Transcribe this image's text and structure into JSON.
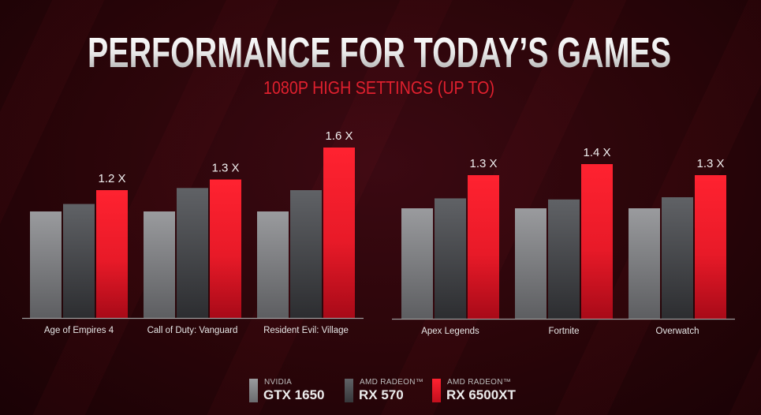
{
  "title": "PERFORMANCE FOR TODAY’S GAMES",
  "subtitle": "1080P HIGH SETTINGS (UP TO)",
  "colors": {
    "gtx1650": "#8f9092",
    "rx570": "#505255",
    "rx6500xt": "#ff1f2d",
    "subtitle": "#e0202e"
  },
  "legend": [
    {
      "brand": "NVIDIA",
      "model": "GTX 1650",
      "color": "#8f9092"
    },
    {
      "brand": "AMD RADEON™",
      "model": "RX 570",
      "color": "#505255"
    },
    {
      "brand": "AMD RADEON™",
      "model": "RX 6500XT",
      "color": "#ff1f2d"
    }
  ],
  "chart_data": [
    {
      "type": "bar",
      "categories": [
        "Age of Empires 4",
        "Call of Duty: Vanguard",
        "Resident Evil: Village"
      ],
      "series": [
        {
          "name": "GTX 1650",
          "values": [
            1.0,
            1.0,
            1.0
          ]
        },
        {
          "name": "RX 570",
          "values": [
            1.07,
            1.22,
            1.2
          ]
        },
        {
          "name": "RX 6500XT",
          "values": [
            1.2,
            1.3,
            1.6
          ]
        }
      ],
      "data_labels": [
        "1.2 X",
        "1.3 X",
        "1.6 X"
      ],
      "grid": false
    },
    {
      "type": "bar",
      "categories": [
        "Apex Legends",
        "Fortnite",
        "Overwatch"
      ],
      "series": [
        {
          "name": "GTX 1650",
          "values": [
            1.0,
            1.0,
            1.0
          ]
        },
        {
          "name": "RX 570",
          "values": [
            1.09,
            1.08,
            1.1
          ]
        },
        {
          "name": "RX 6500XT",
          "values": [
            1.3,
            1.4,
            1.3
          ]
        }
      ],
      "data_labels": [
        "1.3 X",
        "1.4 X",
        "1.3 X"
      ],
      "grid": false
    }
  ]
}
